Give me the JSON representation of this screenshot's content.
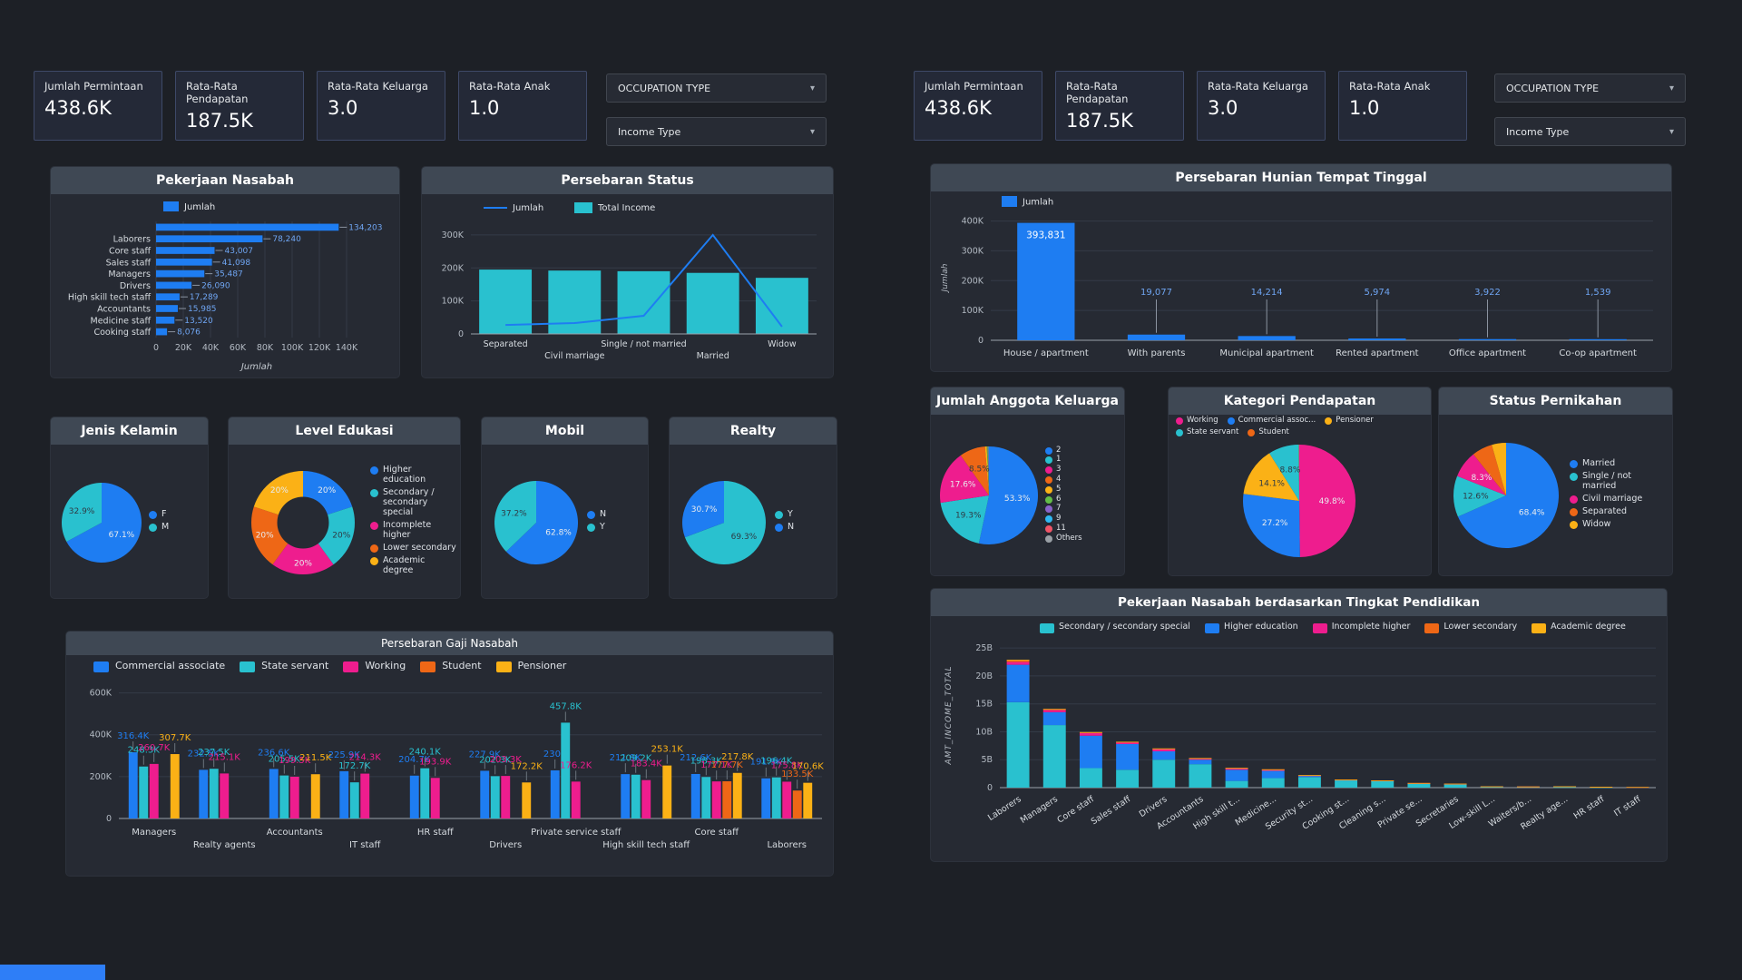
{
  "kpis": [
    {
      "label": "Jumlah Permintaan",
      "value": "438.6K"
    },
    {
      "label": "Rata-Rata Pendapatan",
      "value": "187.5K"
    },
    {
      "label": "Rata-Rata Keluarga",
      "value": "3.0"
    },
    {
      "label": "Rata-Rata Anak",
      "value": "1.0"
    }
  ],
  "filters": [
    {
      "label": "OCCUPATION TYPE"
    },
    {
      "label": "Income Type"
    }
  ],
  "colors": {
    "blue": "#1e7df2",
    "teal": "#29c1cf",
    "magenta": "#ee1d8e",
    "orange": "#ee6716",
    "yellow": "#fbb116",
    "green": "#63bd47",
    "purple": "#8a63c9",
    "light_blue": "#2fb8f2",
    "red": "#f05467",
    "gray": "#9aa0a6",
    "value_label": "#6fa5f2",
    "panel_bg": "#262a33",
    "panel_header_bg": "#3f4854",
    "page_bg": "#1d2026"
  },
  "chart_data": [
    {
      "type": "bar",
      "orientation": "horizontal",
      "title": "Pekerjaan Nasabah",
      "legend": [
        "Jumlah"
      ],
      "color": "#1e7df2",
      "categories": [
        "",
        "Laborers",
        "Core staff",
        "Sales staff",
        "Managers",
        "Drivers",
        "High skill tech staff",
        "Accountants",
        "Medicine staff",
        "Cooking staff"
      ],
      "values": [
        134203,
        78240,
        43007,
        41098,
        35487,
        26090,
        17289,
        15985,
        13520,
        8076
      ],
      "value_labels": [
        "134,203",
        "78,240",
        "43,007",
        "41,098",
        "35,487",
        "26,090",
        "17,289",
        "15,985",
        "13,520",
        "8,076"
      ],
      "xticks": [
        "0",
        "20K",
        "40K",
        "60K",
        "80K",
        "100K",
        "120K",
        "140K"
      ],
      "xtick_vals": [
        0,
        20000,
        40000,
        60000,
        80000,
        100000,
        120000,
        140000
      ],
      "xmax": 148000,
      "xlabel": "Jumlah"
    },
    {
      "type": "combo",
      "title": "Persebaran Status",
      "categories": [
        "Separated",
        "Civil marriage",
        "Single / not married",
        "Married",
        "Widow"
      ],
      "series": [
        {
          "name": "Jumlah",
          "type": "line",
          "color": "#1e7df2",
          "values": [
            27000,
            33000,
            55000,
            300000,
            22000
          ]
        },
        {
          "name": "Total Income",
          "type": "bar",
          "color": "#29c1cf",
          "values": [
            195000,
            192000,
            190000,
            185000,
            170000
          ]
        }
      ],
      "yticks": [
        "0",
        "100K",
        "200K",
        "300K"
      ],
      "ytick_vals": [
        0,
        100000,
        200000,
        300000
      ],
      "ymax": 330000
    },
    {
      "type": "pie",
      "title": "Jenis Kelamin",
      "slices": [
        {
          "label": "F",
          "value": 67.1,
          "pct": "67.1%",
          "color": "#1e7df2"
        },
        {
          "label": "M",
          "value": 32.9,
          "pct": "32.9%",
          "color": "#29c1cf",
          "label_dark": true
        }
      ]
    },
    {
      "type": "pie",
      "title": "Level Edukasi",
      "donut": true,
      "slices": [
        {
          "label": "Higher education",
          "value": 20,
          "pct": "20%",
          "color": "#1e7df2"
        },
        {
          "label": "Secondary / secondary special",
          "value": 20,
          "pct": "20%",
          "color": "#29c1cf",
          "label_dark": true
        },
        {
          "label": "Incomplete higher",
          "value": 20,
          "pct": "20%",
          "color": "#ee1d8e"
        },
        {
          "label": "Lower secondary",
          "value": 20,
          "pct": "20%",
          "color": "#ee6716"
        },
        {
          "label": "Academic degree",
          "value": 20,
          "pct": "20%",
          "color": "#fbb116"
        }
      ]
    },
    {
      "type": "pie",
      "title": "Mobil",
      "slices": [
        {
          "label": "N",
          "value": 62.8,
          "pct": "62.8%",
          "color": "#1e7df2"
        },
        {
          "label": "Y",
          "value": 37.2,
          "pct": "37.2%",
          "color": "#29c1cf",
          "label_dark": true
        }
      ]
    },
    {
      "type": "pie",
      "title": "Realty",
      "slices": [
        {
          "label": "Y",
          "value": 69.3,
          "pct": "69.3%",
          "color": "#29c1cf",
          "label_dark": true
        },
        {
          "label": "N",
          "value": 30.7,
          "pct": "30.7%",
          "color": "#1e7df2"
        }
      ]
    },
    {
      "type": "grouped_bar",
      "title": "Persebaran Gaji Nasabah",
      "categories": [
        "Managers",
        "Realty agents",
        "Accountants",
        "IT staff",
        "HR staff",
        "Drivers",
        "Private service staff",
        "High skill tech staff",
        "Core staff",
        "Laborers"
      ],
      "series": [
        {
          "name": "Commercial associate",
          "color": "#1e7df2",
          "values": [
            316.4,
            232.5,
            236.6,
            225.9,
            204.7,
            227.9,
            230,
            211.9,
            212.6,
            191.9
          ],
          "labels": [
            "316.4K",
            "232.5K",
            "236.6K",
            "225.9K",
            "204.7K",
            "227.9K",
            "230K",
            "211.9K",
            "212.6K",
            "191.9K"
          ]
        },
        {
          "name": "State servant",
          "color": "#29c1cf",
          "values": [
            248.3,
            237.5,
            205.5,
            172.7,
            240.1,
            202.3,
            457.8,
            209.2,
            198.3,
            196.4
          ],
          "labels": [
            "248.3K",
            "237.5K",
            "205.5K",
            "172.7K",
            "240.1K",
            "202.3K",
            "457.8K",
            "209.2K",
            "198.3K",
            "196.4K"
          ]
        },
        {
          "name": "Working",
          "color": "#ee1d8e",
          "values": [
            260.7,
            215.1,
            199.5,
            214.3,
            193.9,
            203.3,
            176.2,
            183.4,
            177.1,
            175.8
          ],
          "labels": [
            "260.7K",
            "215.1K",
            "199.5K",
            "214.3K",
            "193.9K",
            "203.3K",
            "176.2K",
            "183.4K",
            "177.1K",
            "175.8K"
          ]
        },
        {
          "name": "Student",
          "color": "#ee6716",
          "values": [
            null,
            null,
            null,
            null,
            null,
            null,
            null,
            null,
            177.7,
            133.5
          ],
          "labels": [
            null,
            null,
            null,
            null,
            null,
            null,
            null,
            null,
            "177.7K",
            "133.5K"
          ]
        },
        {
          "name": "Pensioner",
          "color": "#fbb116",
          "values": [
            307.7,
            null,
            211.5,
            null,
            null,
            172.2,
            null,
            253.1,
            217.8,
            170.6
          ],
          "labels": [
            "307.7K",
            null,
            "211.5K",
            null,
            null,
            "172.2K",
            null,
            "253.1K",
            "217.8K",
            "170.6K"
          ]
        }
      ],
      "yticks": [
        "0",
        "200K",
        "400K",
        "600K"
      ],
      "ytick_vals": [
        0,
        200,
        400,
        600
      ],
      "ymax": 620
    },
    {
      "type": "bar",
      "title": "Persebaran Hunian Tempat Tinggal",
      "legend": [
        "Jumlah"
      ],
      "color": "#1e7df2",
      "ylabel": "Jumlah",
      "categories": [
        "House / apartment",
        "With parents",
        "Municipal apartment",
        "Rented apartment",
        "Office apartment",
        "Co-op apartment"
      ],
      "values": [
        393831,
        19077,
        14214,
        5974,
        3922,
        1539
      ],
      "value_labels": [
        "393,831",
        "19,077",
        "14,214",
        "5,974",
        "3,922",
        "1,539"
      ],
      "yticks": [
        "0",
        "100K",
        "200K",
        "300K",
        "400K"
      ],
      "ytick_vals": [
        0,
        100000,
        200000,
        300000,
        400000
      ],
      "ymax": 420000
    },
    {
      "type": "pie",
      "title": "Jumlah Anggota Keluarga",
      "slices": [
        {
          "label": "2",
          "value": 53.3,
          "pct": "53.3%",
          "color": "#1e7df2"
        },
        {
          "label": "1",
          "value": 19.3,
          "pct": "19.3%",
          "color": "#29c1cf",
          "label_dark": true
        },
        {
          "label": "3",
          "value": 17.6,
          "pct": "17.6%",
          "color": "#ee1d8e"
        },
        {
          "label": "4",
          "value": 8.5,
          "pct": "8.5%",
          "color": "#ee6716",
          "label_dark": true
        },
        {
          "label": "5",
          "value": 0.6,
          "color": "#fbb116"
        },
        {
          "label": "6",
          "value": 0.3,
          "color": "#63bd47"
        },
        {
          "label": "7",
          "value": 0.15,
          "color": "#8a63c9"
        },
        {
          "label": "9",
          "value": 0.1,
          "color": "#2fb8f2"
        },
        {
          "label": "11",
          "value": 0.05,
          "color": "#f05467"
        },
        {
          "label": "Others",
          "value": 0.1,
          "color": "#9aa0a6"
        }
      ]
    },
    {
      "type": "pie",
      "title": "Kategori Pendapatan",
      "slices": [
        {
          "label": "Working",
          "value": 49.8,
          "pct": "49.8%",
          "color": "#ee1d8e"
        },
        {
          "label": "Commercial assoc...",
          "value": 27.2,
          "pct": "27.2%",
          "color": "#1e7df2"
        },
        {
          "label": "Pensioner",
          "value": 14.1,
          "pct": "14.1%",
          "color": "#fbb116",
          "label_dark": true
        },
        {
          "label": "State servant",
          "value": 8.8,
          "pct": "8.8%",
          "color": "#29c1cf",
          "label_dark": true
        },
        {
          "label": "Student",
          "value": 0.1,
          "color": "#ee6716"
        }
      ]
    },
    {
      "type": "pie",
      "title": "Status Pernikahan",
      "slices": [
        {
          "label": "Married",
          "value": 68.4,
          "pct": "68.4%",
          "color": "#1e7df2"
        },
        {
          "label": "Single / not married",
          "value": 12.6,
          "pct": "12.6%",
          "color": "#29c1cf",
          "label_dark": true
        },
        {
          "label": "Civil marriage",
          "value": 8.3,
          "pct": "8.3%",
          "color": "#ee1d8e"
        },
        {
          "label": "Separated",
          "value": 6.3,
          "color": "#ee6716"
        },
        {
          "label": "Widow",
          "value": 4.4,
          "color": "#fbb116"
        }
      ]
    },
    {
      "type": "stacked_bar",
      "title": "Pekerjaan Nasabah berdasarkan Tingkat Pendidikan",
      "ylabel": "AMT_INCOME_TOTAL",
      "categories": [
        "Laborers",
        "Managers",
        "Core staff",
        "Sales staff",
        "Drivers",
        "Accountants",
        "High skill t...",
        "Medicine...",
        "Security st...",
        "Cooking st...",
        "Cleaning s...",
        "Private se...",
        "Secretaries",
        "Low-skill L...",
        "Waiters/b...",
        "Realty age...",
        "HR staff",
        "IT staff"
      ],
      "series": [
        {
          "name": "Secondary / secondary special",
          "color": "#29c1cf",
          "values": [
            15.3,
            11.2,
            3.5,
            3.2,
            5.0,
            4.2,
            1.2,
            1.7,
            1.9,
            1.3,
            1.2,
            0.7,
            0.55,
            0.18,
            0.15,
            0.1,
            0.08,
            0.05
          ]
        },
        {
          "name": "Higher education",
          "color": "#1e7df2",
          "values": [
            6.7,
            2.3,
            5.8,
            4.6,
            1.5,
            0.8,
            2.0,
            1.3,
            0.25,
            0.1,
            0.05,
            0.1,
            0.12,
            0.02,
            0.03,
            0.1,
            0.05,
            0.04
          ]
        },
        {
          "name": "Incomplete higher",
          "color": "#ee1d8e",
          "values": [
            0.5,
            0.4,
            0.5,
            0.35,
            0.4,
            0.25,
            0.3,
            0.25,
            0.05,
            0.02,
            0.02,
            0.02,
            0.02,
            0.01,
            0.01,
            0.02,
            0.01,
            0.01
          ]
        },
        {
          "name": "Lower secondary",
          "color": "#ee6716",
          "values": [
            0.35,
            0.15,
            0.1,
            0.05,
            0.1,
            0.03,
            0.02,
            0.02,
            0.03,
            0.02,
            0.02,
            0.01,
            0.01,
            0.005,
            0.005,
            0.005,
            0.005,
            0.005
          ]
        },
        {
          "name": "Academic degree",
          "color": "#fbb116",
          "values": [
            0.05,
            0.05,
            0.05,
            0.02,
            0.02,
            0.02,
            0.01,
            0.01,
            0.005,
            0.005,
            0.005,
            0.005,
            0.005,
            0.002,
            0.002,
            0.002,
            0.002,
            0.002
          ]
        }
      ],
      "yticks": [
        "0",
        "5B",
        "10B",
        "15B",
        "20B",
        "25B"
      ],
      "ytick_vals": [
        0,
        5,
        10,
        15,
        20,
        25
      ],
      "ymax": 26
    }
  ]
}
